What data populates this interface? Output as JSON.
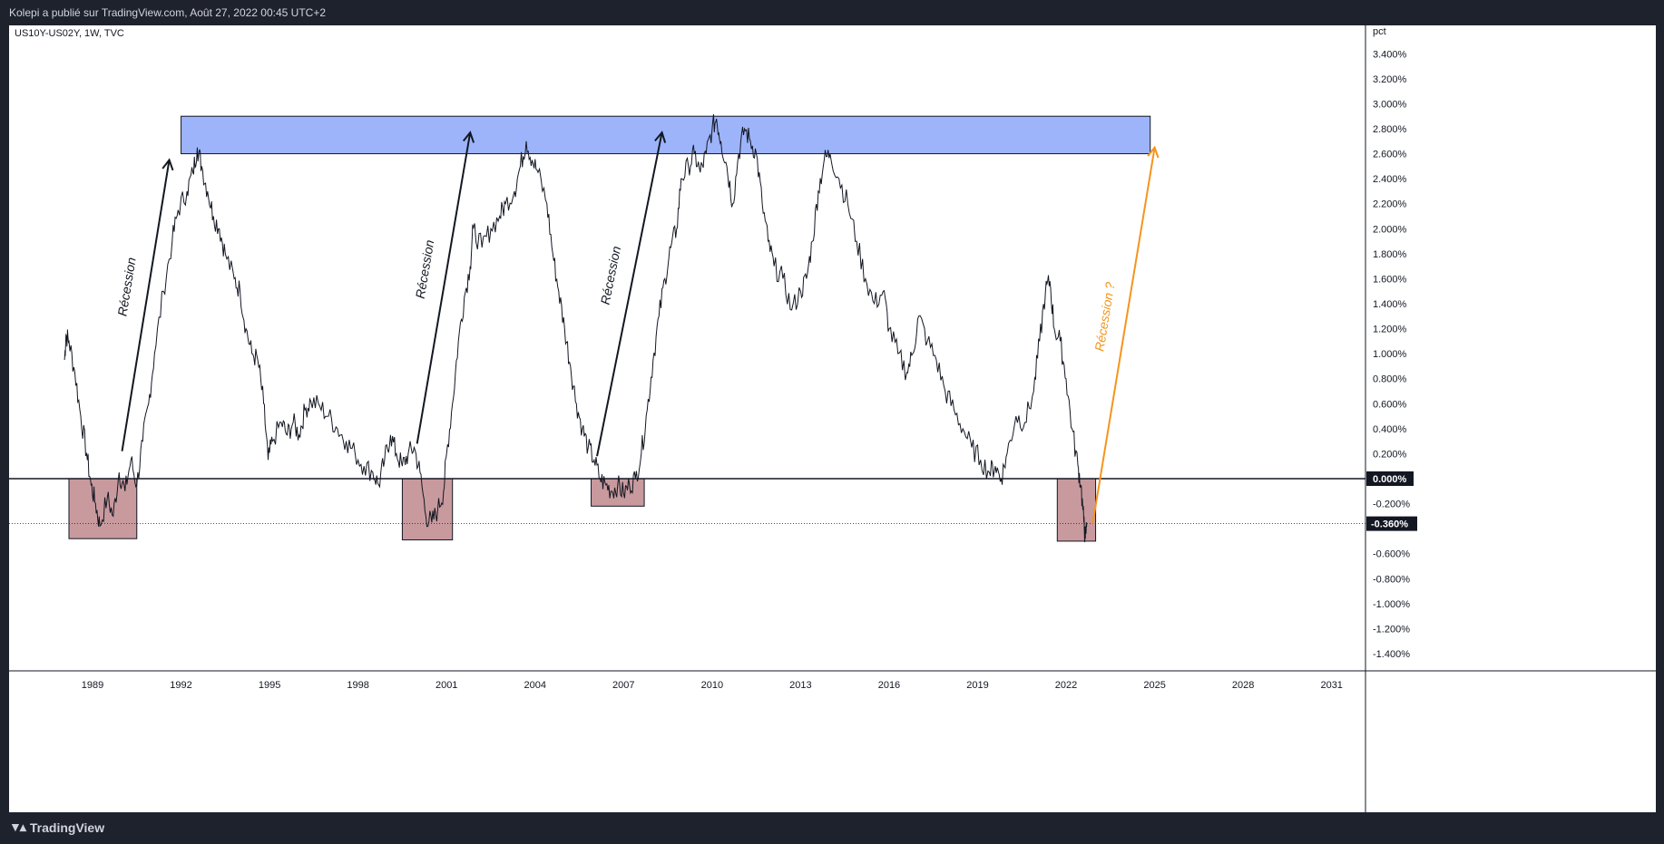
{
  "header": {
    "text": "Kolepi a publié sur TradingView.com, Août 27, 2022 00:45 UTC+2"
  },
  "chart_data": {
    "type": "line",
    "title": "US10Y-US02Y, 1W, TVC",
    "ylabel": "pct",
    "ylim": [
      -1.5,
      3.5
    ],
    "xlim": [
      1986.0,
      2031.75
    ],
    "x_ticks": [
      "1989",
      "1992",
      "1995",
      "1998",
      "2001",
      "2004",
      "2007",
      "2010",
      "2013",
      "2016",
      "2019",
      "2022",
      "2025",
      "2028",
      "2031"
    ],
    "y_ticks": [
      "3.400%",
      "3.200%",
      "3.000%",
      "2.800%",
      "2.600%",
      "2.400%",
      "2.200%",
      "2.000%",
      "1.800%",
      "1.600%",
      "1.400%",
      "1.200%",
      "1.000%",
      "0.800%",
      "0.600%",
      "0.400%",
      "0.200%",
      "0.000%",
      "-0.200%",
      "-0.400%",
      "-0.600%",
      "-0.800%",
      "-1.000%",
      "-1.200%",
      "-1.400%"
    ],
    "zero_label": "0.000%",
    "last_label": "-0.360%",
    "last_value": -0.36,
    "series": [
      {
        "values": [
          [
            1988.05,
            0.95
          ],
          [
            1988.1,
            1.15
          ],
          [
            1988.2,
            1.1
          ],
          [
            1988.4,
            0.85
          ],
          [
            1988.6,
            0.5
          ],
          [
            1988.8,
            0.2
          ],
          [
            1988.95,
            -0.05
          ],
          [
            1989.1,
            -0.2
          ],
          [
            1989.25,
            -0.38
          ],
          [
            1989.5,
            -0.15
          ],
          [
            1989.7,
            -0.3
          ],
          [
            1989.9,
            0.05
          ],
          [
            1990.1,
            -0.1
          ],
          [
            1990.3,
            0.15
          ],
          [
            1990.5,
            -0.05
          ],
          [
            1990.7,
            0.3
          ],
          [
            1990.9,
            0.6
          ],
          [
            1991.1,
            1.0
          ],
          [
            1991.4,
            1.5
          ],
          [
            1991.7,
            1.9
          ],
          [
            1991.9,
            2.15
          ],
          [
            1992.2,
            2.3
          ],
          [
            1992.4,
            2.45
          ],
          [
            1992.55,
            2.65
          ],
          [
            1992.7,
            2.5
          ],
          [
            1992.9,
            2.3
          ],
          [
            1993.1,
            2.1
          ],
          [
            1993.3,
            2.0
          ],
          [
            1993.5,
            1.8
          ],
          [
            1993.8,
            1.6
          ],
          [
            1994.0,
            1.5
          ],
          [
            1994.2,
            1.2
          ],
          [
            1994.4,
            1.0
          ],
          [
            1994.6,
            0.95
          ],
          [
            1994.8,
            0.6
          ],
          [
            1994.95,
            0.15
          ],
          [
            1995.1,
            0.3
          ],
          [
            1995.4,
            0.45
          ],
          [
            1995.6,
            0.35
          ],
          [
            1995.8,
            0.45
          ],
          [
            1996.0,
            0.35
          ],
          [
            1996.2,
            0.55
          ],
          [
            1996.4,
            0.62
          ],
          [
            1996.7,
            0.58
          ],
          [
            1997.0,
            0.5
          ],
          [
            1997.3,
            0.4
          ],
          [
            1997.6,
            0.3
          ],
          [
            1997.9,
            0.2
          ],
          [
            1998.2,
            0.1
          ],
          [
            1998.5,
            0.05
          ],
          [
            1998.7,
            -0.05
          ],
          [
            1998.9,
            0.15
          ],
          [
            1999.1,
            0.35
          ],
          [
            1999.3,
            0.2
          ],
          [
            1999.5,
            0.1
          ],
          [
            1999.7,
            0.2
          ],
          [
            1999.9,
            0.25
          ],
          [
            2000.1,
            0.05
          ],
          [
            2000.3,
            -0.3
          ],
          [
            2000.5,
            -0.35
          ],
          [
            2000.7,
            -0.25
          ],
          [
            2000.9,
            -0.1
          ],
          [
            2001.0,
            0.2
          ],
          [
            2001.2,
            0.6
          ],
          [
            2001.4,
            1.1
          ],
          [
            2001.6,
            1.45
          ],
          [
            2001.8,
            1.7
          ],
          [
            2001.9,
            2.0
          ],
          [
            2002.2,
            1.85
          ],
          [
            2002.5,
            2.0
          ],
          [
            2002.8,
            2.1
          ],
          [
            2003.0,
            2.2
          ],
          [
            2003.3,
            2.3
          ],
          [
            2003.5,
            2.5
          ],
          [
            2003.7,
            2.7
          ],
          [
            2003.9,
            2.55
          ],
          [
            2004.1,
            2.45
          ],
          [
            2004.4,
            2.2
          ],
          [
            2004.6,
            1.8
          ],
          [
            2004.8,
            1.5
          ],
          [
            2005.0,
            1.2
          ],
          [
            2005.2,
            0.9
          ],
          [
            2005.4,
            0.6
          ],
          [
            2005.6,
            0.4
          ],
          [
            2005.8,
            0.25
          ],
          [
            2006.0,
            0.15
          ],
          [
            2006.2,
            0.0
          ],
          [
            2006.4,
            -0.05
          ],
          [
            2006.6,
            -0.1
          ],
          [
            2006.8,
            -0.05
          ],
          [
            2007.0,
            -0.12
          ],
          [
            2007.2,
            -0.05
          ],
          [
            2007.4,
            0.0
          ],
          [
            2007.6,
            0.2
          ],
          [
            2007.8,
            0.55
          ],
          [
            2008.0,
            0.95
          ],
          [
            2008.2,
            1.3
          ],
          [
            2008.4,
            1.6
          ],
          [
            2008.6,
            1.85
          ],
          [
            2008.8,
            2.0
          ],
          [
            2008.95,
            2.4
          ],
          [
            2009.2,
            2.5
          ],
          [
            2009.4,
            2.6
          ],
          [
            2009.6,
            2.45
          ],
          [
            2009.8,
            2.6
          ],
          [
            2010.0,
            2.8
          ],
          [
            2010.15,
            2.88
          ],
          [
            2010.3,
            2.7
          ],
          [
            2010.5,
            2.5
          ],
          [
            2010.7,
            2.2
          ],
          [
            2010.9,
            2.6
          ],
          [
            2011.1,
            2.8
          ],
          [
            2011.3,
            2.7
          ],
          [
            2011.5,
            2.6
          ],
          [
            2011.7,
            2.2
          ],
          [
            2011.9,
            1.9
          ],
          [
            2012.1,
            1.7
          ],
          [
            2012.4,
            1.6
          ],
          [
            2012.7,
            1.35
          ],
          [
            2013.0,
            1.5
          ],
          [
            2013.2,
            1.6
          ],
          [
            2013.4,
            1.9
          ],
          [
            2013.6,
            2.3
          ],
          [
            2013.8,
            2.55
          ],
          [
            2014.0,
            2.6
          ],
          [
            2014.3,
            2.4
          ],
          [
            2014.6,
            2.2
          ],
          [
            2014.9,
            1.9
          ],
          [
            2015.2,
            1.6
          ],
          [
            2015.5,
            1.4
          ],
          [
            2015.8,
            1.5
          ],
          [
            2016.0,
            1.2
          ],
          [
            2016.3,
            1.0
          ],
          [
            2016.6,
            0.85
          ],
          [
            2016.8,
            1.0
          ],
          [
            2017.0,
            1.3
          ],
          [
            2017.3,
            1.1
          ],
          [
            2017.6,
            0.95
          ],
          [
            2017.9,
            0.7
          ],
          [
            2018.2,
            0.55
          ],
          [
            2018.5,
            0.4
          ],
          [
            2018.8,
            0.25
          ],
          [
            2019.1,
            0.15
          ],
          [
            2019.4,
            0.05
          ],
          [
            2019.6,
            0.1
          ],
          [
            2019.8,
            0.0
          ],
          [
            2020.0,
            0.2
          ],
          [
            2020.3,
            0.5
          ],
          [
            2020.6,
            0.45
          ],
          [
            2020.9,
            0.7
          ],
          [
            2021.1,
            1.1
          ],
          [
            2021.3,
            1.5
          ],
          [
            2021.45,
            1.58
          ],
          [
            2021.6,
            1.2
          ],
          [
            2021.8,
            1.1
          ],
          [
            2022.0,
            0.8
          ],
          [
            2022.2,
            0.4
          ],
          [
            2022.4,
            0.1
          ],
          [
            2022.5,
            -0.05
          ],
          [
            2022.6,
            -0.35
          ],
          [
            2022.65,
            -0.48
          ],
          [
            2022.7,
            -0.36
          ]
        ]
      }
    ],
    "recession_boxes": [
      {
        "x0": 1988.2,
        "x1": 1990.5,
        "y0": -0.48,
        "y1": 0.0
      },
      {
        "x0": 1999.5,
        "x1": 2001.2,
        "y0": -0.49,
        "y1": 0.0
      },
      {
        "x0": 2005.9,
        "x1": 2007.7,
        "y0": -0.22,
        "y1": 0.0
      },
      {
        "x0": 2021.7,
        "x1": 2023.0,
        "y0": -0.5,
        "y1": 0.0
      }
    ],
    "resistance_zone": {
      "x0": 1992.0,
      "x1": 2024.85,
      "y0": 2.6,
      "y1": 2.9
    },
    "arrows": [
      {
        "x0": 1990.0,
        "y0": 0.22,
        "x1": 1991.6,
        "y1": 2.55,
        "label": "Récession",
        "color": "#131722"
      },
      {
        "x0": 2000.0,
        "y0": 0.28,
        "x1": 2001.8,
        "y1": 2.77,
        "label": "Récession",
        "color": "#131722"
      },
      {
        "x0": 2006.1,
        "y0": 0.18,
        "x1": 2008.3,
        "y1": 2.77,
        "label": "Récession",
        "color": "#131722"
      },
      {
        "x0": 2022.9,
        "y0": -0.36,
        "x1": 2025.0,
        "y1": 2.65,
        "label": "Récession ?",
        "color": "#f5941d"
      }
    ]
  },
  "footer": {
    "brand": "TradingView"
  }
}
